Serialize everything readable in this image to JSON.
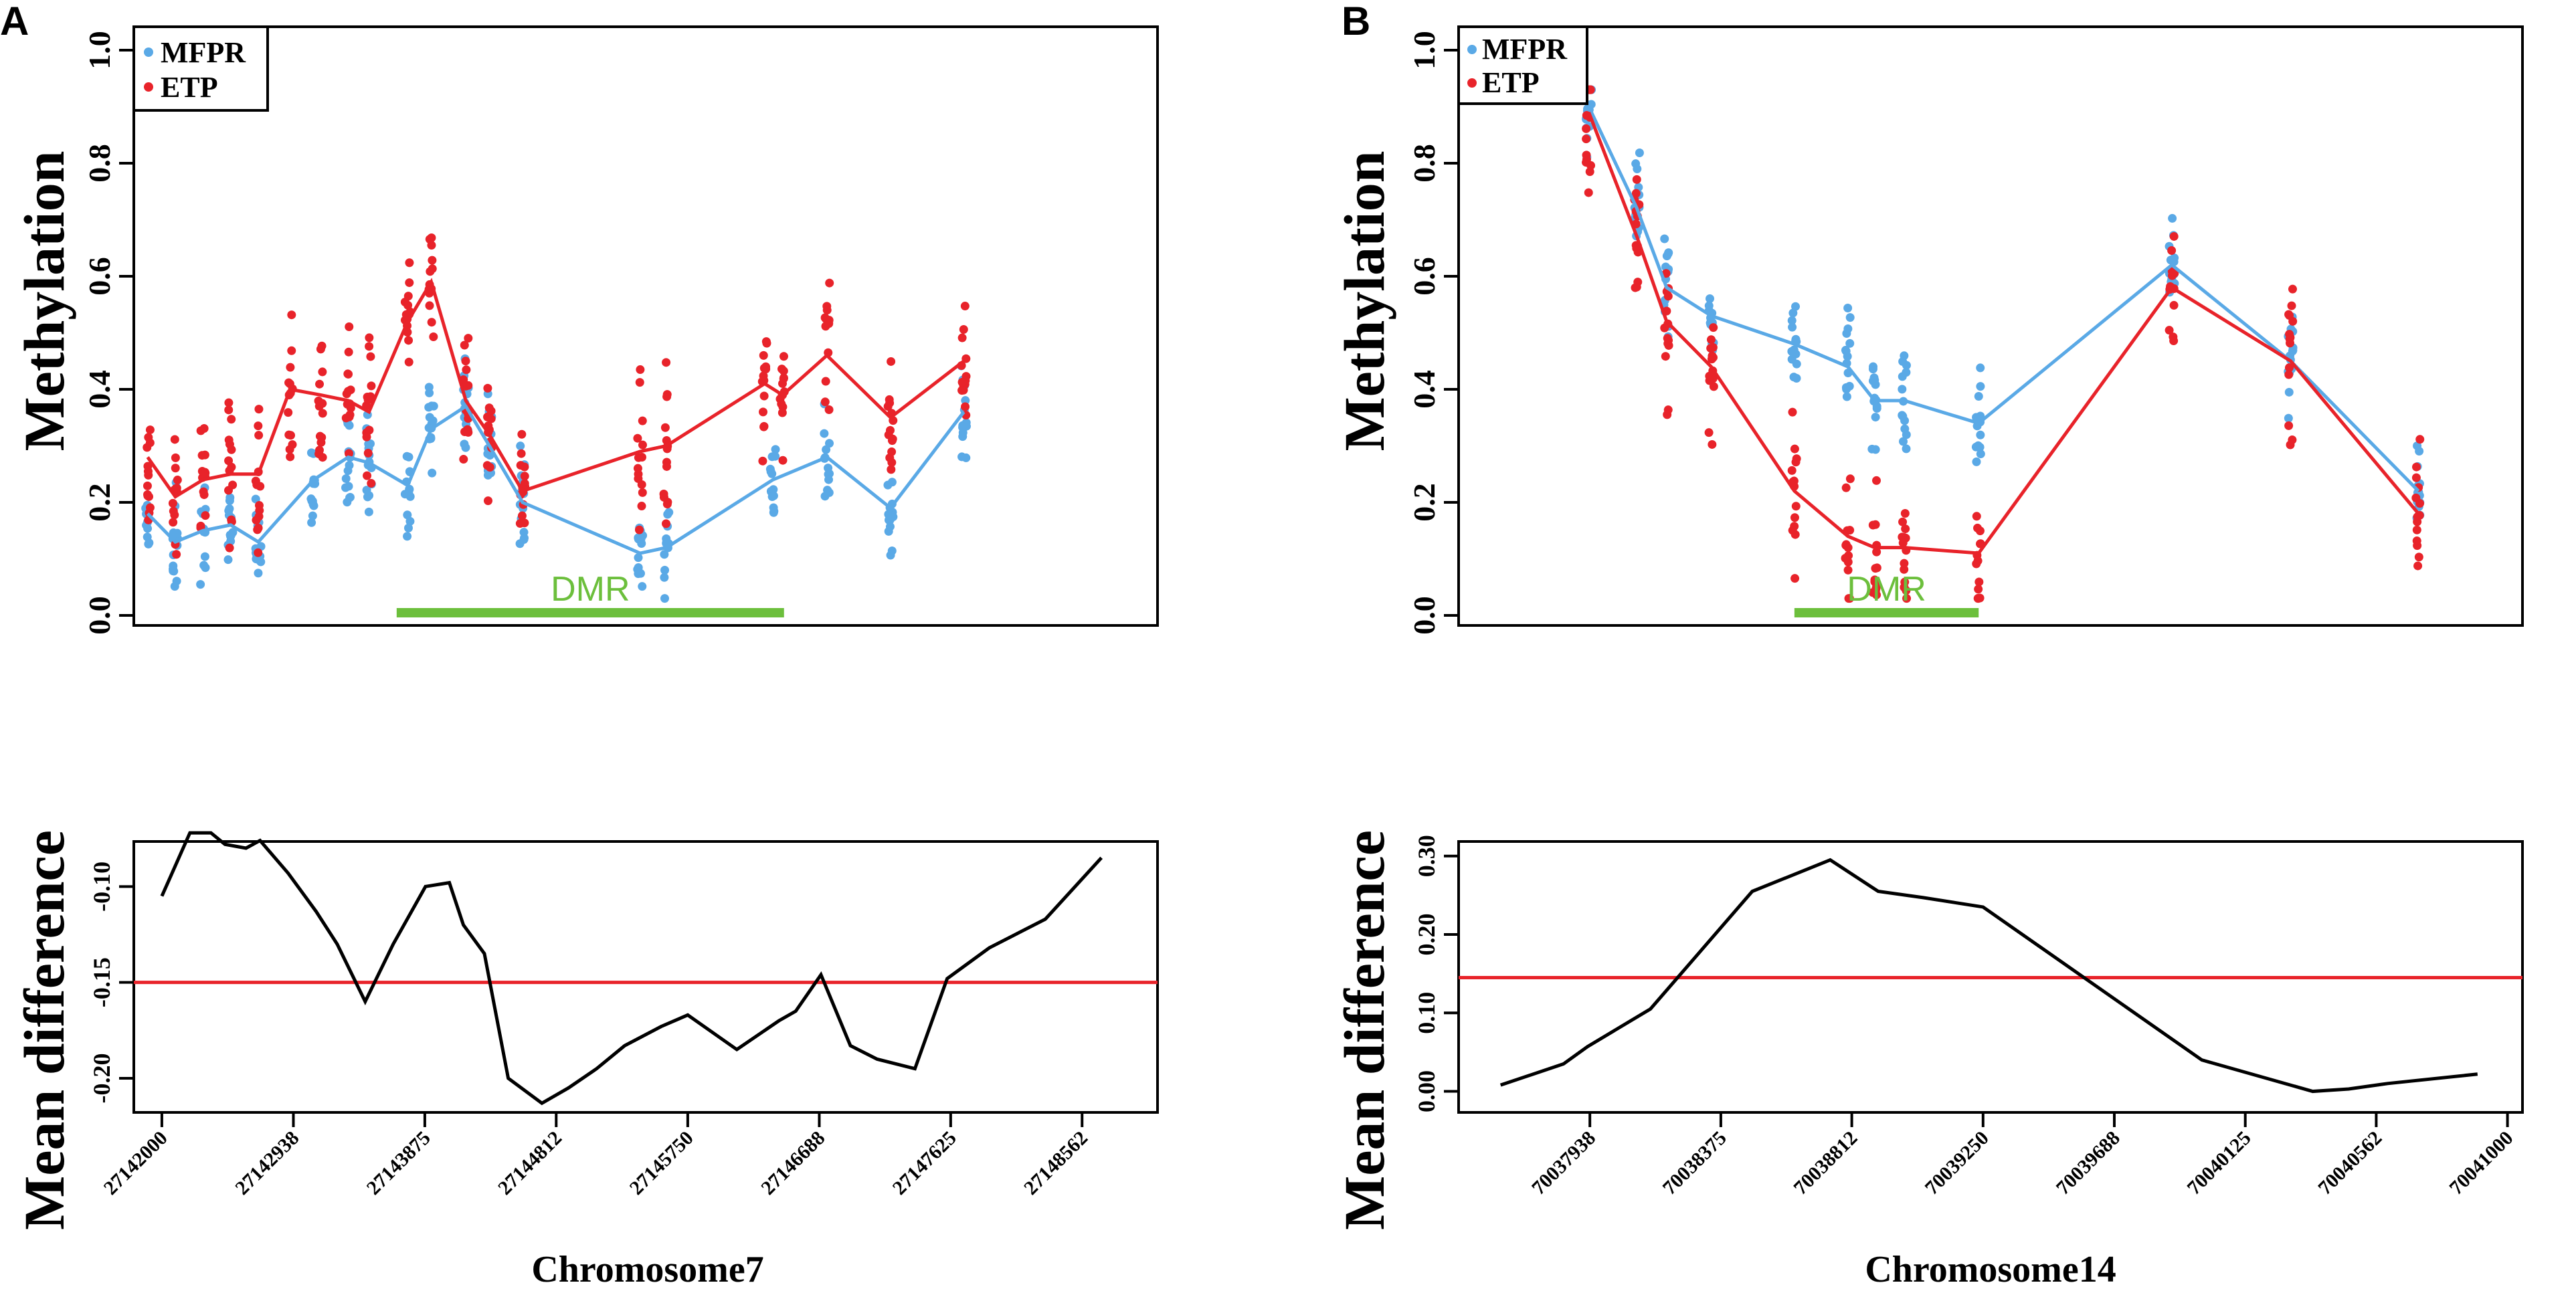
{
  "colors": {
    "mfpr": "#5aa9e6",
    "etp": "#e8232a",
    "dmr": "#6cbf3c",
    "diff_line": "#000000",
    "threshold": "#e8232a",
    "axis": "#000000"
  },
  "panels": [
    {
      "id": "A",
      "label": "A",
      "chromosome_label": "Chromosome7",
      "methylation": {
        "ylabel": "Methylation",
        "yticks": [
          "0.0",
          "0.2",
          "0.4",
          "0.6",
          "0.8",
          "1.0"
        ],
        "legend": [
          "MFPR",
          "ETP"
        ],
        "dmr_label": "DMR"
      },
      "difference": {
        "ylabel": "Mean difference",
        "yticks": [
          "-0.10",
          "-0.15",
          "-0.20"
        ],
        "xticks": [
          "27142000",
          "27142938",
          "27143875",
          "27144812",
          "27145750",
          "27146688",
          "27147625",
          "27148562"
        ]
      }
    },
    {
      "id": "B",
      "label": "B",
      "chromosome_label": "Chromosome14",
      "methylation": {
        "ylabel": "Methylation",
        "yticks": [
          "0.0",
          "0.2",
          "0.4",
          "0.6",
          "0.8",
          "1.0"
        ],
        "legend": [
          "MFPR",
          "ETP"
        ],
        "dmr_label": "DMR"
      },
      "difference": {
        "ylabel": "Mean difference",
        "yticks": [
          "0.00",
          "0.10",
          "0.20",
          "0.30"
        ],
        "xticks": [
          "70037938",
          "70038375",
          "70038812",
          "70039250",
          "70039688",
          "70040125",
          "70040562",
          "70041000"
        ]
      }
    }
  ],
  "chart_data": [
    {
      "panel": "A",
      "type": "scatter",
      "title": "",
      "xlabel": "",
      "ylabel": "Methylation",
      "xlim": [
        27141900,
        27149300
      ],
      "ylim": [
        0,
        1
      ],
      "series": [
        {
          "name": "MFPR",
          "x": [
            27142000,
            27142200,
            27142400,
            27142600,
            27142800,
            27143200,
            27143450,
            27143600,
            27143880,
            27144050,
            27144300,
            27144470,
            27144710,
            27145560,
            27145750,
            27146520,
            27146910,
            27147370,
            27147900
          ],
          "values": [
            0.18,
            0.13,
            0.15,
            0.16,
            0.13,
            0.24,
            0.28,
            0.27,
            0.23,
            0.33,
            0.37,
            0.3,
            0.2,
            0.11,
            0.12,
            0.24,
            0.28,
            0.19,
            0.36
          ]
        },
        {
          "name": "ETP",
          "x": [
            27142000,
            27142200,
            27142400,
            27142600,
            27142800,
            27143030,
            27143250,
            27143450,
            27143600,
            27143880,
            27144050,
            27144300,
            27144470,
            27144710,
            27145560,
            27145750,
            27146460,
            27146590,
            27146910,
            27147370,
            27147900
          ],
          "values": [
            0.28,
            0.21,
            0.24,
            0.25,
            0.25,
            0.4,
            0.39,
            0.38,
            0.36,
            0.52,
            0.59,
            0.38,
            0.32,
            0.22,
            0.29,
            0.3,
            0.41,
            0.39,
            0.46,
            0.35,
            0.45
          ]
        }
      ],
      "dmr_range": [
        27143800,
        27146600
      ]
    },
    {
      "panel": "A",
      "type": "line",
      "title": "",
      "xlabel": "Chromosome7",
      "ylabel": "Mean difference",
      "xlim": [
        27141800,
        27149100
      ],
      "ylim": [
        -0.215,
        -0.08
      ],
      "series": [
        {
          "name": "Mean difference",
          "x": [
            27142000,
            27142200,
            27142350,
            27142450,
            27142600,
            27142700,
            27142900,
            27143100,
            27143250,
            27143450,
            27143650,
            27143880,
            27144050,
            27144150,
            27144300,
            27144470,
            27144710,
            27144900,
            27145100,
            27145300,
            27145560,
            27145750,
            27146100,
            27146400,
            27146520,
            27146700,
            27146910,
            27147100,
            27147370,
            27147600,
            27147900,
            27148300,
            27148700
          ],
          "values": [
            -0.105,
            -0.072,
            -0.072,
            -0.078,
            -0.08,
            -0.076,
            -0.093,
            -0.113,
            -0.13,
            -0.16,
            -0.13,
            -0.1,
            -0.098,
            -0.12,
            -0.135,
            -0.2,
            -0.213,
            -0.205,
            -0.195,
            -0.183,
            -0.173,
            -0.167,
            -0.185,
            -0.17,
            -0.165,
            -0.146,
            -0.183,
            -0.19,
            -0.195,
            -0.148,
            -0.132,
            -0.117,
            -0.085
          ]
        }
      ],
      "threshold": -0.15
    },
    {
      "panel": "B",
      "type": "scatter",
      "title": "",
      "xlabel": "",
      "ylabel": "Methylation",
      "xlim": [
        70037500,
        70041080
      ],
      "ylim": [
        0,
        1
      ],
      "series": [
        {
          "name": "MFPR",
          "x": [
            70037938,
            70038100,
            70038200,
            70038350,
            70038630,
            70038810,
            70038900,
            70039000,
            70039250,
            70039900,
            70040300,
            70040730
          ],
          "values": [
            0.9,
            0.72,
            0.58,
            0.53,
            0.48,
            0.44,
            0.38,
            0.38,
            0.34,
            0.62,
            0.45,
            0.22
          ]
        },
        {
          "name": "ETP",
          "x": [
            70037938,
            70038100,
            70038200,
            70038350,
            70038630,
            70038810,
            70038900,
            70039000,
            70039250,
            70039900,
            70040300,
            70040730
          ],
          "values": [
            0.89,
            0.67,
            0.52,
            0.44,
            0.22,
            0.14,
            0.12,
            0.12,
            0.11,
            0.58,
            0.45,
            0.18
          ]
        }
      ],
      "dmr_range": [
        70038630,
        70039250
      ]
    },
    {
      "panel": "B",
      "type": "line",
      "title": "",
      "xlabel": "Chromosome14",
      "ylabel": "Mean difference",
      "xlim": [
        70037500,
        70041050
      ],
      "ylim": [
        -0.02,
        0.31
      ],
      "series": [
        {
          "name": "Mean difference",
          "x": [
            70037640,
            70037850,
            70037930,
            70038140,
            70038480,
            70038740,
            70038900,
            70039050,
            70039250,
            70039980,
            70040350,
            70040470,
            70040600,
            70040900
          ],
          "values": [
            0.008,
            0.035,
            0.057,
            0.105,
            0.255,
            0.295,
            0.255,
            0.247,
            0.235,
            0.04,
            0.0,
            0.003,
            0.01,
            0.022
          ]
        }
      ],
      "threshold": 0.145
    }
  ]
}
